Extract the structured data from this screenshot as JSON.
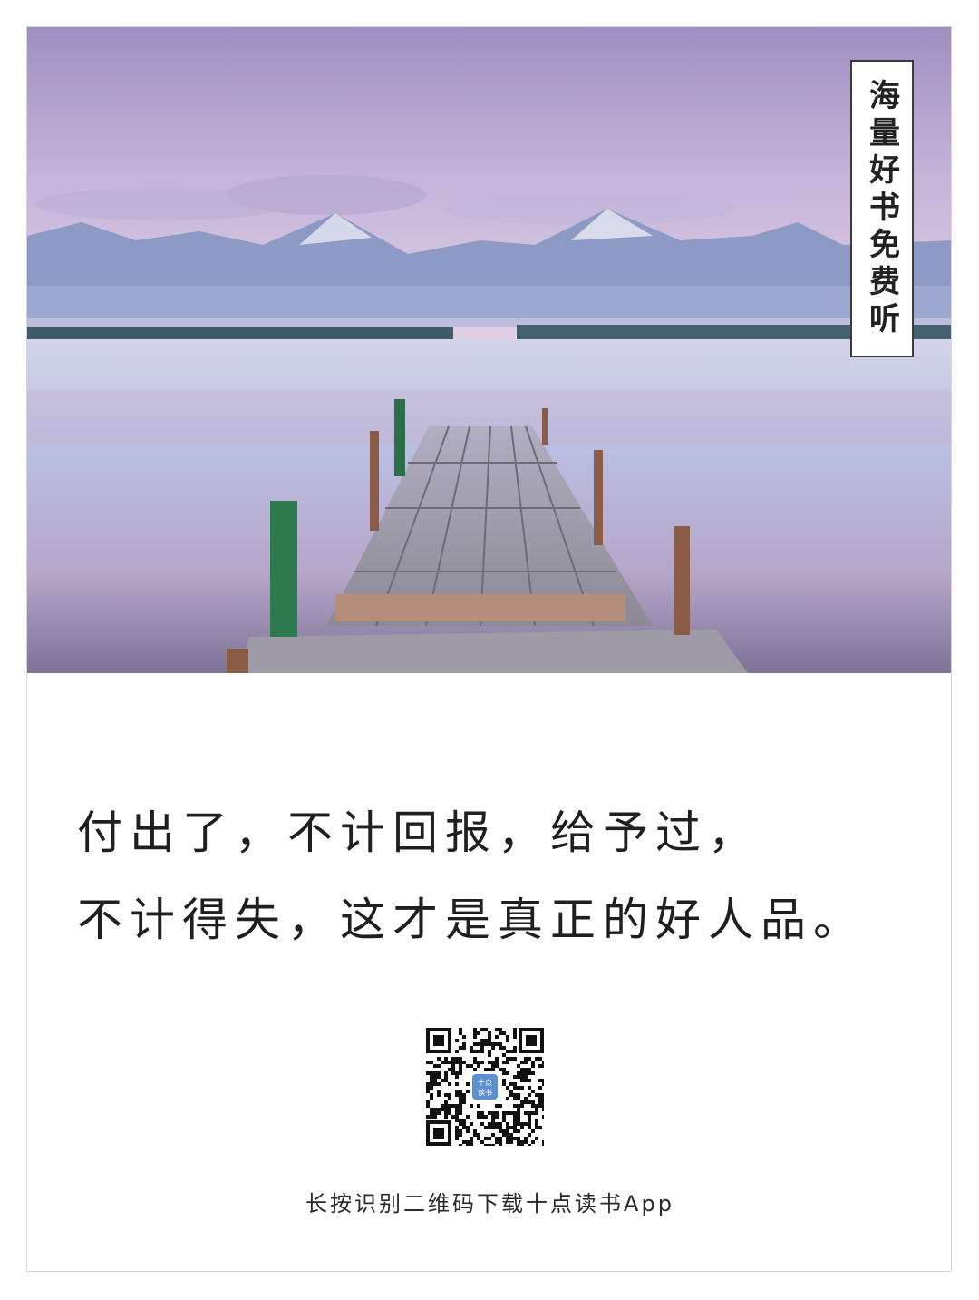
{
  "badge": {
    "text": "海量好书免费听"
  },
  "quote": {
    "line1": "付出了，不计回报，给予过，",
    "line2": "不计得失，这才是真正的好人品。"
  },
  "qr": {
    "logo_text_top": "十点",
    "logo_text_bottom": "读书"
  },
  "caption": {
    "text": "长按识别二维码下载十点读书App"
  },
  "colors": {
    "sky_top": "#9f8fc2",
    "sky_mid": "#d9c6e4",
    "water": "#b8b7dc",
    "dock": "#9a9aa8",
    "text": "#1f1f1f",
    "qr_logo": "#5b8fd0"
  },
  "icons": [
    "qr-code-icon",
    "app-logo-icon"
  ]
}
